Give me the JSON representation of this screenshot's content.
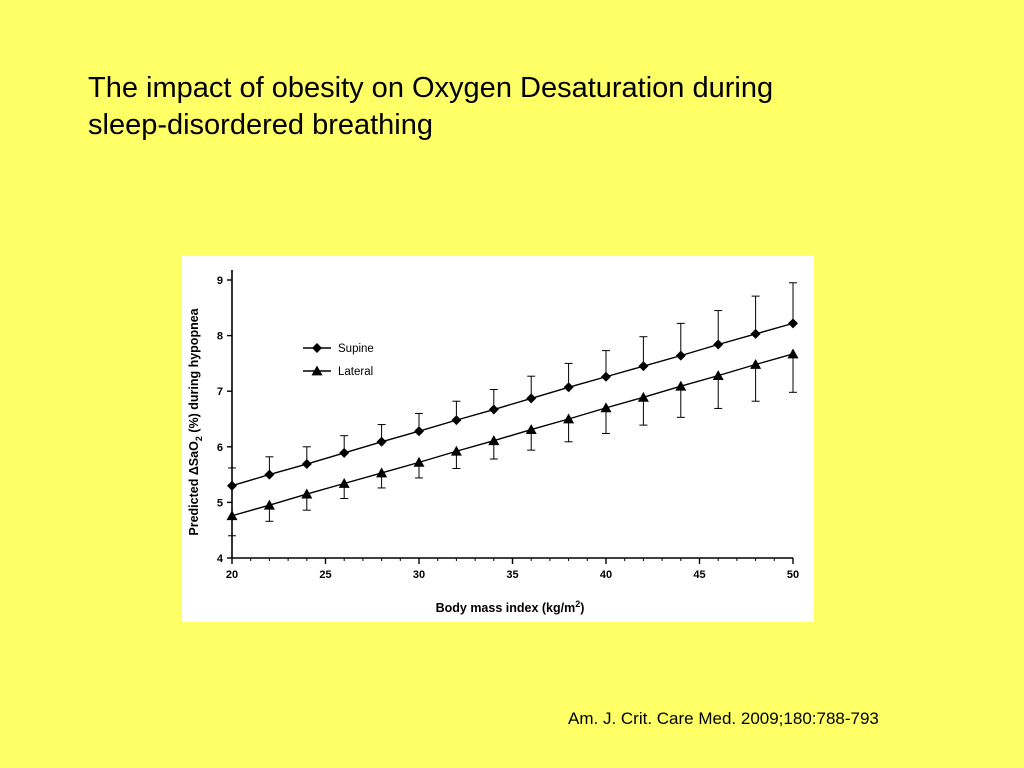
{
  "slide": {
    "title_line1": "The impact of obesity on Oxygen Desaturation during",
    "title_line2": "sleep-disordered breathing",
    "citation": "Am. J. Crit. Care Med. 2009;180:788-793"
  },
  "colors": {
    "background": "#FFFF66",
    "figure_background": "#FFFFFF",
    "ink": "#000000"
  },
  "chart_data": {
    "type": "line",
    "title": "",
    "xlabel_text": "Body mass index (kg/m",
    "xlabel_superscript": "2",
    "xlabel_close": ")",
    "ylabel_pre": "Predicted ",
    "ylabel_delta": "Δ",
    "ylabel_mid": "SaO",
    "ylabel_subscript": "2",
    "ylabel_post": " (%) during hypopnea",
    "xlim": [
      20,
      50
    ],
    "ylim": [
      4,
      9
    ],
    "xticks": [
      20,
      25,
      30,
      35,
      40,
      45,
      50
    ],
    "yticks": [
      4,
      5,
      6,
      7,
      8,
      9
    ],
    "grid": false,
    "legend_position": "top-left",
    "x": [
      20,
      22,
      24,
      26,
      28,
      30,
      32,
      34,
      36,
      38,
      40,
      42,
      44,
      46,
      48,
      50
    ],
    "series": [
      {
        "name": "Supine",
        "marker": "diamond",
        "values": [
          5.3,
          5.5,
          5.69,
          5.89,
          6.09,
          6.28,
          6.48,
          6.67,
          6.87,
          7.07,
          7.26,
          7.45,
          7.64,
          7.84,
          8.03,
          8.22
        ],
        "error_upper": [
          5.62,
          5.82,
          6.0,
          6.2,
          6.4,
          6.6,
          6.82,
          7.03,
          7.27,
          7.5,
          7.73,
          7.98,
          8.22,
          8.45,
          8.71,
          8.95
        ]
      },
      {
        "name": "Lateral",
        "marker": "triangle",
        "values": [
          4.76,
          4.95,
          5.15,
          5.34,
          5.53,
          5.72,
          5.92,
          6.11,
          6.31,
          6.5,
          6.7,
          6.89,
          7.09,
          7.28,
          7.48,
          7.67
        ],
        "error_lower": [
          4.4,
          4.66,
          4.86,
          5.07,
          5.26,
          5.44,
          5.61,
          5.78,
          5.94,
          6.09,
          6.24,
          6.39,
          6.53,
          6.69,
          6.82,
          6.98
        ]
      }
    ]
  }
}
